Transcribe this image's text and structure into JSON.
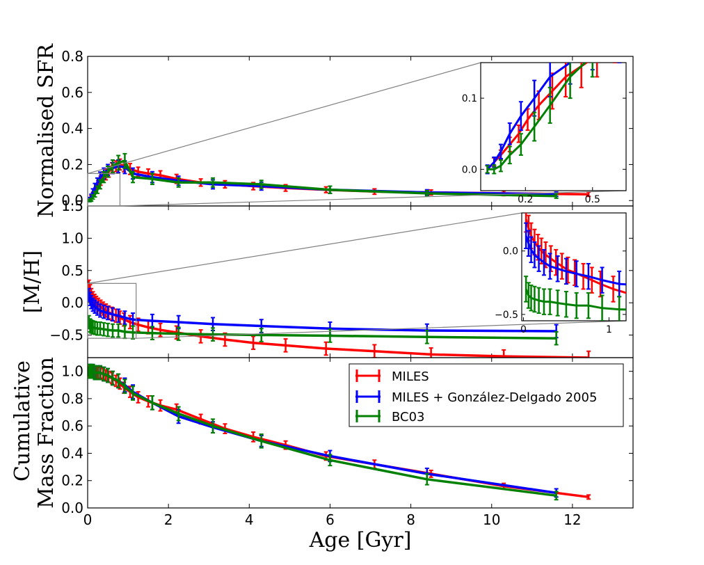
{
  "chart_data": {
    "type": "line",
    "xlabel": "Age [Gyr]",
    "xlim": [
      0,
      13.5
    ],
    "xticks": [
      0,
      2,
      4,
      6,
      8,
      10,
      12
    ],
    "legend": {
      "placement": "bottom panel, top-right",
      "entries": [
        "MILES",
        "MILES + González-Delgado 2005",
        "BC03"
      ]
    },
    "colors": {
      "MILES": "#ff0000",
      "MILES + González-Delgado 2005": "#0000ff",
      "BC03": "#008000",
      "connector": "#808080"
    },
    "panels": [
      {
        "id": "sfr",
        "ylabel": "Normalised SFR",
        "ylim": [
          -0.03,
          0.8
        ],
        "yticks": [
          "0.0",
          "0.2",
          "0.4",
          "0.6",
          "0.8"
        ],
        "zoom_box": {
          "x": [
            0,
            0.8
          ],
          "y": [
            -0.03,
            0.15
          ]
        },
        "inset": {
          "xlim": [
            0,
            0.65
          ],
          "ylim": [
            -0.03,
            0.15
          ],
          "xticks": [
            "0.2",
            "0.5"
          ],
          "xtick_values": [
            0.2,
            0.5
          ],
          "yticks": [
            "0.0",
            "0.1"
          ],
          "ytick_values": [
            0.0,
            0.1
          ]
        },
        "series": [
          {
            "name": "MILES",
            "x": [
              0.03,
              0.06,
              0.09,
              0.13,
              0.17,
              0.21,
              0.26,
              0.32,
              0.38,
              0.45,
              0.52,
              0.6,
              0.7,
              0.8,
              0.9,
              1.05,
              1.25,
              1.5,
              1.8,
              2.2,
              2.8,
              3.4,
              4.1,
              4.9,
              5.9,
              7.1,
              8.5,
              10.3,
              12.4
            ],
            "y": [
              0.0,
              0.01,
              0.02,
              0.035,
              0.05,
              0.07,
              0.09,
              0.11,
              0.13,
              0.145,
              0.16,
              0.18,
              0.19,
              0.2,
              0.19,
              0.175,
              0.16,
              0.15,
              0.14,
              0.12,
              0.1,
              0.09,
              0.08,
              0.07,
              0.06,
              0.05,
              0.045,
              0.04,
              0.035
            ],
            "err": [
              0.005,
              0.006,
              0.007,
              0.01,
              0.012,
              0.015,
              0.02,
              0.025,
              0.028,
              0.03,
              0.03,
              0.03,
              0.03,
              0.03,
              0.03,
              0.03,
              0.025,
              0.025,
              0.025,
              0.025,
              0.02,
              0.02,
              0.02,
              0.018,
              0.016,
              0.015,
              0.014,
              0.013,
              0.012
            ]
          },
          {
            "name": "MILES + González-Delgado 2005",
            "x": [
              0.03,
              0.06,
              0.09,
              0.13,
              0.18,
              0.24,
              0.31,
              0.4,
              0.5,
              0.62,
              0.76,
              0.92,
              1.12,
              1.6,
              2.25,
              3.1,
              4.3,
              6.0,
              8.4,
              11.6
            ],
            "y": [
              0.0,
              0.01,
              0.025,
              0.05,
              0.075,
              0.1,
              0.13,
              0.15,
              0.17,
              0.18,
              0.19,
              0.185,
              0.15,
              0.13,
              0.11,
              0.09,
              0.08,
              0.06,
              0.045,
              0.035
            ],
            "err": [
              0.006,
              0.007,
              0.01,
              0.015,
              0.02,
              0.025,
              0.028,
              0.03,
              0.03,
              0.03,
              0.035,
              0.035,
              0.03,
              0.03,
              0.025,
              0.025,
              0.022,
              0.02,
              0.015,
              0.012
            ]
          },
          {
            "name": "BC03",
            "x": [
              0.03,
              0.06,
              0.09,
              0.13,
              0.18,
              0.24,
              0.31,
              0.4,
              0.5,
              0.62,
              0.76,
              0.92,
              1.12,
              1.6,
              2.25,
              3.1,
              4.3,
              6.0,
              8.4,
              11.6
            ],
            "y": [
              0.0,
              0.0,
              0.005,
              0.02,
              0.035,
              0.06,
              0.09,
              0.13,
              0.16,
              0.19,
              0.21,
              0.22,
              0.13,
              0.12,
              0.1,
              0.1,
              0.09,
              0.06,
              0.04,
              0.025
            ],
            "err": [
              0.005,
              0.006,
              0.008,
              0.012,
              0.015,
              0.02,
              0.025,
              0.03,
              0.03,
              0.035,
              0.04,
              0.04,
              0.03,
              0.03,
              0.025,
              0.025,
              0.022,
              0.02,
              0.015,
              0.012
            ]
          }
        ]
      },
      {
        "id": "mh",
        "ylabel": "[M/H]",
        "ylim": [
          -0.85,
          1.5
        ],
        "yticks": [
          "−0.5",
          "0.0",
          "0.5",
          "1.0",
          "1.5"
        ],
        "ytick_values": [
          -0.5,
          0.0,
          0.5,
          1.0,
          1.5
        ],
        "zoom_box": {
          "x": [
            0,
            1.2
          ],
          "y": [
            -0.55,
            0.3
          ]
        },
        "inset": {
          "xlim": [
            -0.02,
            1.2
          ],
          "ylim": [
            -0.55,
            0.3
          ],
          "xticks": [
            "0",
            "1"
          ],
          "xtick_values": [
            0,
            1
          ],
          "yticks": [
            "−0.5",
            "0.0"
          ],
          "ytick_values": [
            -0.5,
            0.0
          ]
        },
        "series": [
          {
            "name": "MILES",
            "x": [
              0.03,
              0.06,
              0.09,
              0.13,
              0.17,
              0.21,
              0.26,
              0.32,
              0.38,
              0.45,
              0.52,
              0.6,
              0.7,
              0.8,
              0.9,
              1.05,
              1.25,
              1.5,
              1.8,
              2.2,
              2.8,
              3.4,
              4.1,
              4.9,
              5.9,
              7.1,
              8.5,
              10.3,
              12.4
            ],
            "y": [
              0.25,
              0.18,
              0.12,
              0.07,
              0.03,
              0.0,
              -0.03,
              -0.06,
              -0.09,
              -0.12,
              -0.15,
              -0.17,
              -0.2,
              -0.23,
              -0.26,
              -0.3,
              -0.34,
              -0.38,
              -0.42,
              -0.46,
              -0.52,
              -0.57,
              -0.62,
              -0.66,
              -0.71,
              -0.75,
              -0.8,
              -0.83,
              -0.85
            ],
            "err": [
              0.1,
              0.1,
              0.1,
              0.1,
              0.1,
              0.1,
              0.1,
              0.1,
              0.1,
              0.1,
              0.1,
              0.1,
              0.1,
              0.1,
              0.1,
              0.1,
              0.1,
              0.1,
              0.1,
              0.1,
              0.1,
              0.1,
              0.1,
              0.1,
              0.1,
              0.1,
              0.1,
              0.1,
              0.1
            ]
          },
          {
            "name": "MILES + González-Delgado 2005",
            "x": [
              0.03,
              0.06,
              0.09,
              0.13,
              0.18,
              0.24,
              0.31,
              0.4,
              0.5,
              0.62,
              0.76,
              0.92,
              1.12,
              1.6,
              2.25,
              3.1,
              4.3,
              6.0,
              8.4,
              11.6
            ],
            "y": [
              0.12,
              0.06,
              0.01,
              -0.03,
              -0.06,
              -0.09,
              -0.12,
              -0.14,
              -0.16,
              -0.18,
              -0.2,
              -0.23,
              -0.26,
              -0.28,
              -0.3,
              -0.33,
              -0.36,
              -0.4,
              -0.43,
              -0.44
            ],
            "err": [
              0.1,
              0.1,
              0.1,
              0.1,
              0.1,
              0.1,
              0.1,
              0.1,
              0.1,
              0.1,
              0.1,
              0.1,
              0.1,
              0.1,
              0.1,
              0.1,
              0.1,
              0.1,
              0.1,
              0.1
            ]
          },
          {
            "name": "BC03",
            "x": [
              0.03,
              0.06,
              0.09,
              0.13,
              0.18,
              0.24,
              0.31,
              0.4,
              0.5,
              0.62,
              0.76,
              0.92,
              1.12,
              1.6,
              2.25,
              3.1,
              4.3,
              6.0,
              8.4,
              11.6
            ],
            "y": [
              -0.3,
              -0.35,
              -0.37,
              -0.38,
              -0.39,
              -0.4,
              -0.4,
              -0.41,
              -0.42,
              -0.43,
              -0.43,
              -0.45,
              -0.46,
              -0.47,
              -0.48,
              -0.49,
              -0.5,
              -0.51,
              -0.53,
              -0.55
            ],
            "err": [
              0.1,
              0.1,
              0.1,
              0.1,
              0.1,
              0.1,
              0.1,
              0.1,
              0.1,
              0.1,
              0.1,
              0.1,
              0.1,
              0.1,
              0.1,
              0.1,
              0.1,
              0.1,
              0.1,
              0.1
            ]
          }
        ]
      },
      {
        "id": "cmf",
        "ylabel_lines": [
          "Cumulative",
          "Mass Fraction"
        ],
        "ylim": [
          0.0,
          1.1
        ],
        "yticks": [
          "0.0",
          "0.2",
          "0.4",
          "0.6",
          "0.8",
          "1.0"
        ],
        "ytick_values": [
          0.0,
          0.2,
          0.4,
          0.6,
          0.8,
          1.0
        ],
        "series": [
          {
            "name": "MILES",
            "x": [
              0.03,
              0.06,
              0.09,
              0.13,
              0.17,
              0.21,
              0.26,
              0.32,
              0.38,
              0.45,
              0.52,
              0.6,
              0.7,
              0.8,
              0.9,
              1.05,
              1.25,
              1.5,
              1.8,
              2.2,
              2.8,
              3.4,
              4.1,
              4.9,
              5.9,
              7.1,
              8.5,
              10.3,
              12.4
            ],
            "y": [
              1.0,
              1.0,
              1.0,
              1.0,
              1.0,
              0.99,
              0.99,
              0.99,
              0.98,
              0.97,
              0.96,
              0.95,
              0.93,
              0.91,
              0.88,
              0.85,
              0.81,
              0.78,
              0.75,
              0.72,
              0.65,
              0.58,
              0.52,
              0.46,
              0.38,
              0.32,
              0.25,
              0.16,
              0.08
            ],
            "err": [
              0.04,
              0.04,
              0.04,
              0.04,
              0.04,
              0.04,
              0.04,
              0.04,
              0.04,
              0.04,
              0.04,
              0.04,
              0.04,
              0.04,
              0.04,
              0.04,
              0.04,
              0.04,
              0.04,
              0.04,
              0.035,
              0.035,
              0.035,
              0.03,
              0.03,
              0.03,
              0.025,
              0.02,
              0.015
            ]
          },
          {
            "name": "MILES + González-Delgado 2005",
            "x": [
              0.03,
              0.06,
              0.09,
              0.13,
              0.18,
              0.24,
              0.31,
              0.4,
              0.5,
              0.62,
              0.76,
              0.92,
              1.12,
              1.6,
              2.25,
              3.1,
              4.3,
              6.0,
              8.4,
              11.6
            ],
            "y": [
              1.0,
              1.0,
              1.0,
              1.0,
              0.99,
              0.99,
              0.99,
              0.98,
              0.97,
              0.95,
              0.93,
              0.9,
              0.85,
              0.77,
              0.67,
              0.59,
              0.49,
              0.38,
              0.25,
              0.11
            ],
            "err": [
              0.05,
              0.05,
              0.05,
              0.05,
              0.05,
              0.05,
              0.05,
              0.05,
              0.05,
              0.05,
              0.05,
              0.05,
              0.05,
              0.05,
              0.05,
              0.04,
              0.04,
              0.04,
              0.04,
              0.03
            ]
          },
          {
            "name": "BC03",
            "x": [
              0.03,
              0.06,
              0.09,
              0.13,
              0.18,
              0.24,
              0.31,
              0.4,
              0.5,
              0.62,
              0.76,
              0.92,
              1.12,
              1.6,
              2.25,
              3.1,
              4.3,
              6.0,
              8.4,
              11.6
            ],
            "y": [
              1.0,
              1.0,
              1.0,
              1.0,
              0.99,
              0.99,
              0.99,
              0.98,
              0.97,
              0.95,
              0.93,
              0.89,
              0.84,
              0.77,
              0.69,
              0.6,
              0.49,
              0.35,
              0.21,
              0.09
            ],
            "err": [
              0.05,
              0.05,
              0.05,
              0.05,
              0.05,
              0.05,
              0.05,
              0.05,
              0.05,
              0.05,
              0.05,
              0.05,
              0.05,
              0.05,
              0.05,
              0.05,
              0.05,
              0.04,
              0.04,
              0.03
            ]
          }
        ]
      }
    ]
  }
}
